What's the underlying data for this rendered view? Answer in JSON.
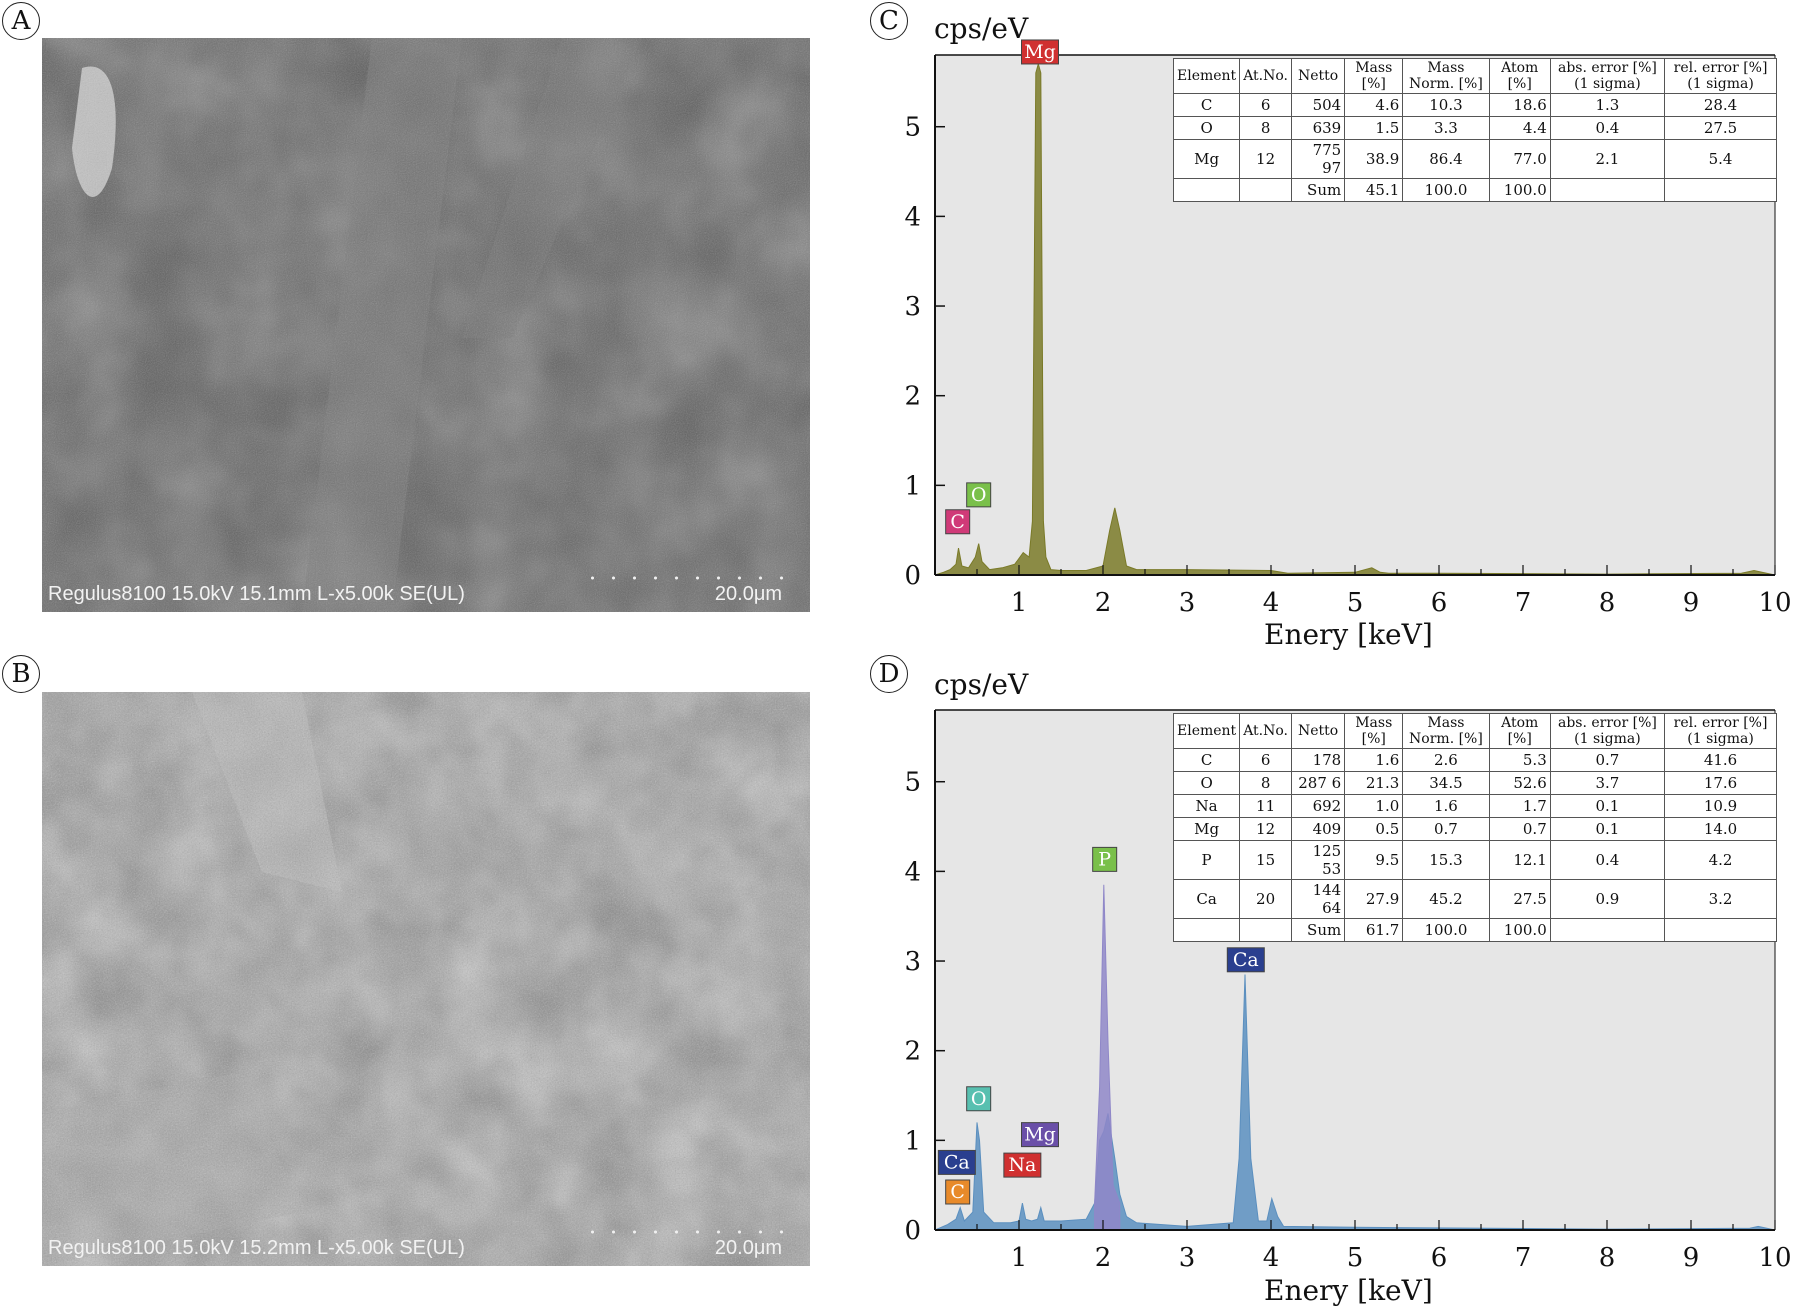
{
  "panels": {
    "A": {
      "letter": "A",
      "caption": "Regulus8100 15.0kV 15.1mm L-x5.00k SE(UL)",
      "scale": "20.0μm"
    },
    "B": {
      "letter": "B",
      "caption": "Regulus8100 15.0kV 15.2mm L-x5.00k SE(UL)",
      "scale": "20.0μm"
    }
  },
  "colors": {
    "spectrum_C": "#7a7a28",
    "spectrum_D_ca": "#5b8fbf",
    "spectrum_D_p": "#8f87c8",
    "plot_bg": "#e6e6e6",
    "label_red": "#d03030",
    "label_green": "#7ac04a",
    "label_pink": "#d03a78",
    "label_blue": "#2a3f8f",
    "label_teal": "#58c0b0",
    "label_purple": "#6a4fa8",
    "label_orange": "#e88a2a"
  },
  "tables": {
    "C": {
      "headers": [
        "Element",
        "At.No.",
        "Netto",
        "Mass [%]",
        "Mass Norm. [%]",
        "Atom [%]",
        "abs. error [%] (1 sigma)",
        "rel. error [%] (1 sigma)"
      ],
      "rows": [
        [
          "C",
          "6",
          "504",
          "4.6",
          "10.3",
          "18.6",
          "1.3",
          "28.4"
        ],
        [
          "O",
          "8",
          "639",
          "1.5",
          "3.3",
          "4.4",
          "0.4",
          "27.5"
        ],
        [
          "Mg",
          "12",
          "775 97",
          "38.9",
          "86.4",
          "77.0",
          "2.1",
          "5.4"
        ],
        [
          "",
          "",
          "Sum",
          "45.1",
          "100.0",
          "100.0",
          "",
          ""
        ]
      ]
    },
    "D": {
      "headers": [
        "Element",
        "At.No.",
        "Netto",
        "Mass [%]",
        "Mass Norm. [%]",
        "Atom [%]",
        "abs. error [%] (1 sigma)",
        "rel. error [%] (1 sigma)"
      ],
      "rows": [
        [
          "C",
          "6",
          "178",
          "1.6",
          "2.6",
          "5.3",
          "0.7",
          "41.6"
        ],
        [
          "O",
          "8",
          "287 6",
          "21.3",
          "34.5",
          "52.6",
          "3.7",
          "17.6"
        ],
        [
          "Na",
          "11",
          "692",
          "1.0",
          "1.6",
          "1.7",
          "0.1",
          "10.9"
        ],
        [
          "Mg",
          "12",
          "409",
          "0.5",
          "0.7",
          "0.7",
          "0.1",
          "14.0"
        ],
        [
          "P",
          "15",
          "125 53",
          "9.5",
          "15.3",
          "12.1",
          "0.4",
          "4.2"
        ],
        [
          "Ca",
          "20",
          "144 64",
          "27.9",
          "45.2",
          "27.5",
          "0.9",
          "3.2"
        ],
        [
          "",
          "",
          "Sum",
          "61.7",
          "100.0",
          "100.0",
          "",
          ""
        ]
      ]
    }
  },
  "chart_data": [
    {
      "panel": "C",
      "type": "area",
      "ylabel": "cps/eV",
      "xlabel": "Enery [keV]",
      "xlim": [
        0,
        10
      ],
      "ylim": [
        0,
        5.8
      ],
      "xticks": [
        "1",
        "2",
        "3",
        "4",
        "5",
        "6",
        "7",
        "8",
        "9",
        "10"
      ],
      "yticks": [
        "0",
        "1",
        "2",
        "3",
        "4",
        "5"
      ],
      "series": [
        {
          "x": [
            0,
            0.1,
            0.18,
            0.25,
            0.28,
            0.32,
            0.4,
            0.48,
            0.52,
            0.56,
            0.65,
            0.8,
            0.95,
            1.05,
            1.12,
            1.16,
            1.2,
            1.23,
            1.26,
            1.29,
            1.32,
            1.38,
            1.5,
            1.8,
            2.0,
            2.08,
            2.14,
            2.2,
            2.28,
            2.4,
            3.0,
            4.0,
            4.2,
            5.0,
            5.2,
            5.3,
            5.4,
            6.0,
            8.0,
            9.6,
            9.75,
            9.9,
            10
          ],
          "y": [
            0,
            0.03,
            0.06,
            0.12,
            0.3,
            0.1,
            0.08,
            0.2,
            0.35,
            0.15,
            0.06,
            0.08,
            0.12,
            0.25,
            0.2,
            0.6,
            5.6,
            5.7,
            5.6,
            0.6,
            0.2,
            0.06,
            0.05,
            0.05,
            0.1,
            0.5,
            0.75,
            0.5,
            0.1,
            0.06,
            0.06,
            0.05,
            0.02,
            0.03,
            0.08,
            0.03,
            0.02,
            0.02,
            0.01,
            0.02,
            0.05,
            0.02,
            0
          ]
        }
      ],
      "labels": [
        {
          "text": "Mg",
          "x": 1.25,
          "y": 5.7,
          "color_key": "label_red"
        },
        {
          "text": "O",
          "x": 0.52,
          "y": 0.76,
          "color_key": "label_green"
        },
        {
          "text": "C",
          "x": 0.27,
          "y": 0.46,
          "color_key": "label_pink"
        }
      ]
    },
    {
      "panel": "D",
      "type": "area",
      "ylabel": "cps/eV",
      "xlabel": "Enery [keV]",
      "xlim": [
        0,
        10
      ],
      "ylim": [
        0,
        5.8
      ],
      "xticks": [
        "1",
        "2",
        "3",
        "4",
        "5",
        "6",
        "7",
        "8",
        "9",
        "10"
      ],
      "yticks": [
        "0",
        "1",
        "2",
        "3",
        "4",
        "5"
      ],
      "series": [
        {
          "name_key": "ca",
          "x": [
            0,
            0.15,
            0.25,
            0.3,
            0.35,
            0.45,
            0.5,
            0.53,
            0.58,
            0.7,
            0.9,
            1.0,
            1.04,
            1.08,
            1.15,
            1.22,
            1.26,
            1.3,
            1.5,
            1.8,
            1.9,
            1.96,
            2.01,
            2.06,
            2.1,
            2.14,
            2.2,
            2.28,
            2.4,
            3.0,
            3.55,
            3.62,
            3.69,
            3.76,
            3.85,
            3.95,
            4.01,
            4.08,
            4.15,
            5.0,
            8.0,
            9.7,
            9.8,
            10
          ],
          "y": [
            0,
            0.06,
            0.12,
            0.25,
            0.1,
            0.2,
            1.2,
            1.0,
            0.2,
            0.08,
            0.08,
            0.1,
            0.3,
            0.12,
            0.1,
            0.12,
            0.25,
            0.1,
            0.1,
            0.12,
            0.3,
            1.0,
            1.1,
            1.3,
            1.05,
            0.8,
            0.4,
            0.15,
            0.08,
            0.04,
            0.08,
            0.8,
            2.85,
            0.8,
            0.1,
            0.1,
            0.35,
            0.15,
            0.04,
            0.03,
            0.01,
            0.02,
            0.04,
            0
          ]
        },
        {
          "name_key": "p",
          "x": [
            1.9,
            1.96,
            2.01,
            2.06,
            2.12,
            2.2
          ],
          "y": [
            0.3,
            1.6,
            3.85,
            2.1,
            0.5,
            0.3
          ]
        }
      ],
      "labels": [
        {
          "text": "P",
          "x": 2.02,
          "y": 4.0,
          "color_key": "label_green"
        },
        {
          "text": "Ca",
          "x": 3.7,
          "y": 2.88,
          "color_key": "label_blue"
        },
        {
          "text": "O",
          "x": 0.52,
          "y": 1.33,
          "color_key": "label_teal"
        },
        {
          "text": "Mg",
          "x": 1.25,
          "y": 0.93,
          "color_key": "label_purple"
        },
        {
          "text": "Na",
          "x": 1.04,
          "y": 0.59,
          "color_key": "label_red"
        },
        {
          "text": "Ca",
          "x": 0.26,
          "y": 0.62,
          "color_key": "label_blue"
        },
        {
          "text": "C",
          "x": 0.27,
          "y": 0.29,
          "color_key": "label_orange"
        }
      ]
    }
  ]
}
